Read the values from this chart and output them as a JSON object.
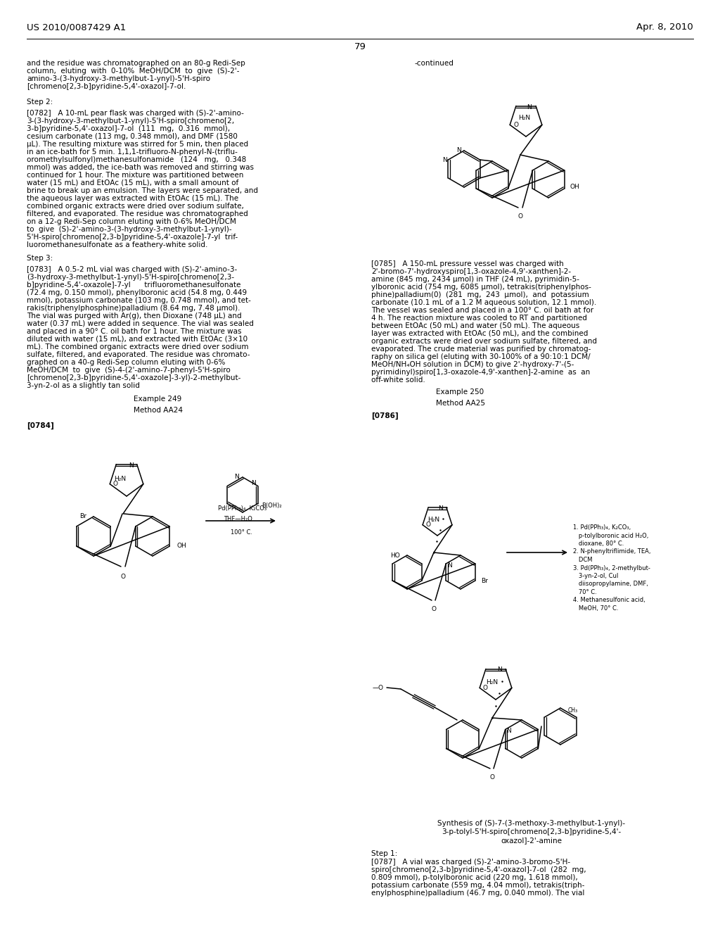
{
  "page_number": "79",
  "patent_left": "US 2010/0087429 A1",
  "patent_right": "Apr. 8, 2010",
  "bg": "#ffffff",
  "fc": "#000000"
}
